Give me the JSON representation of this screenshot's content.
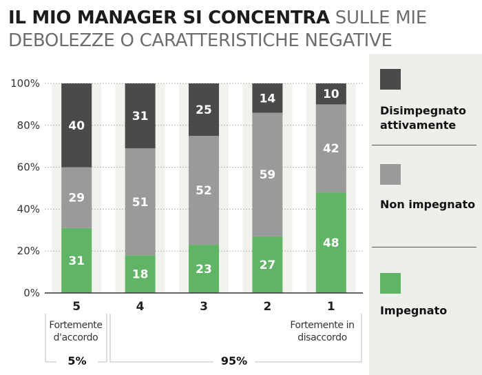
{
  "title": {
    "bold": "IL MIO MANAGER SI CONCENTRA",
    "rest": "SULLE MIE DEBOLEZZE O CARATTERISTICHE NEGATIVE"
  },
  "colors": {
    "engaged": "#5fb565",
    "not_engaged": "#9a9a9a",
    "disengaged": "#4a4a4a",
    "column_bg": "#f1f1ee"
  },
  "legend": [
    {
      "label": "Disimpegnato attivamente",
      "color": "#4a4a4a"
    },
    {
      "label": "Non impegnato",
      "color": "#9a9a9a"
    },
    {
      "label": "Impegnato",
      "color": "#5fb565"
    }
  ],
  "notes": {
    "left": "Fortemente d'accordo",
    "right": "Fortemente in disaccordo",
    "left_pct": "5%",
    "right_pct": "95%"
  },
  "chart_data": {
    "type": "bar",
    "stacked": true,
    "categories": [
      "5",
      "4",
      "3",
      "2",
      "1"
    ],
    "ylim": [
      0,
      100
    ],
    "yticks": [
      "0%",
      "20%",
      "40%",
      "60%",
      "80%",
      "100%"
    ],
    "series": [
      {
        "name": "Impegnato",
        "values": [
          31,
          18,
          23,
          27,
          48
        ]
      },
      {
        "name": "Non impegnato",
        "values": [
          29,
          51,
          52,
          59,
          42
        ]
      },
      {
        "name": "Disimpegnato attivamente",
        "values": [
          40,
          31,
          25,
          14,
          10
        ]
      }
    ]
  }
}
